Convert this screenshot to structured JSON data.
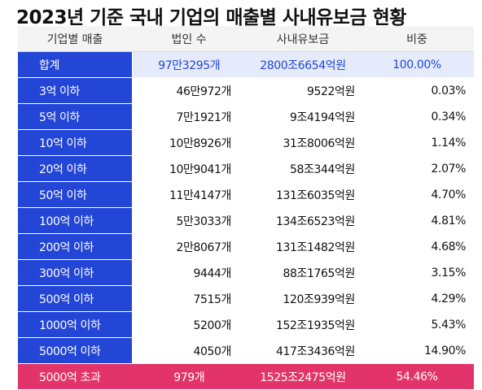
{
  "title": "2023년 기준 국내 기업의 매출별 사내유보금 현황",
  "headers": [
    "기업별 매출",
    "법인 수",
    "사내유보금",
    "비중"
  ],
  "total": {
    "label": "합계",
    "count": "97만3295개",
    "reserves": "2800조6654억원",
    "share": "100.00%"
  },
  "rows": [
    {
      "label": "3억 이하",
      "count": "46만972개",
      "reserves": "9522억원",
      "share": "0.03%"
    },
    {
      "label": "5억 이하",
      "count": "7만1921개",
      "reserves": "9조4194억원",
      "share": "0.34%"
    },
    {
      "label": "10억 이하",
      "count": "10만8926개",
      "reserves": "31조8006억원",
      "share": "1.14%"
    },
    {
      "label": "20억 이하",
      "count": "10만9041개",
      "reserves": "58조344억원",
      "share": "2.07%"
    },
    {
      "label": "50억 이하",
      "count": "11만4147개",
      "reserves": "131조6035억원",
      "share": "4.70%"
    },
    {
      "label": "100억 이하",
      "count": "5만3033개",
      "reserves": "134조6523억원",
      "share": "4.81%"
    },
    {
      "label": "200억 이하",
      "count": "2만8067개",
      "reserves": "131조1482억원",
      "share": "4.68%"
    },
    {
      "label": "300억 이하",
      "count": "9444개",
      "reserves": "88조1765억원",
      "share": "3.15%"
    },
    {
      "label": "500억 이하",
      "count": "7515개",
      "reserves": "120조939억원",
      "share": "4.29%"
    },
    {
      "label": "1000억 이하",
      "count": "5200개",
      "reserves": "152조1935억원",
      "share": "5.43%"
    },
    {
      "label": "5000억 이하",
      "count": "4050개",
      "reserves": "417조3436억원",
      "share": "14.90%"
    }
  ],
  "excess": {
    "label": "5000억 초과",
    "count": "979개",
    "reserves": "1525조2475억원",
    "share": "54.46%"
  },
  "colors": {
    "header_blue": "#2446d6",
    "total_bg": "#e5ebfb",
    "highlight_pink": "#e2346a"
  }
}
